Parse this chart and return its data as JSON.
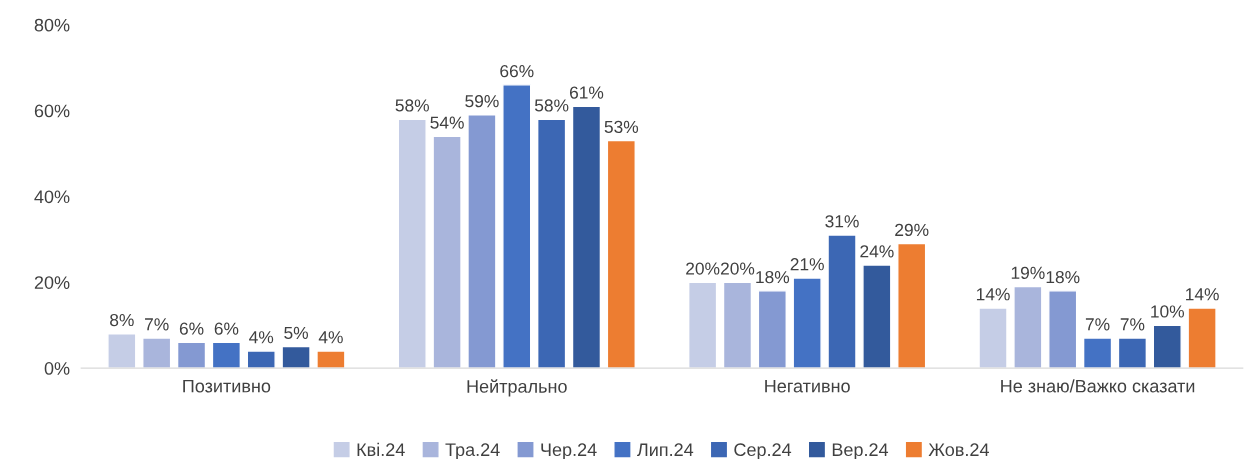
{
  "chart_data": {
    "type": "bar",
    "categories": [
      "Позитивно",
      "Нейтрально",
      "Негативно",
      "Не знаю/Важко сказати"
    ],
    "series": [
      {
        "name": "Кві.24",
        "color": "#c5cde6",
        "values": [
          8,
          58,
          20,
          14
        ],
        "value_labels": [
          "8%",
          "58%",
          "20%",
          "14%"
        ]
      },
      {
        "name": "Тра.24",
        "color": "#a9b5dc",
        "values": [
          7,
          54,
          20,
          19
        ],
        "value_labels": [
          "7%",
          "54%",
          "20%",
          "19%"
        ]
      },
      {
        "name": "Чер.24",
        "color": "#8499d2",
        "values": [
          6,
          59,
          18,
          18
        ],
        "value_labels": [
          "6%",
          "59%",
          "18%",
          "18%"
        ]
      },
      {
        "name": "Лип.24",
        "color": "#4472c4",
        "values": [
          6,
          66,
          21,
          7
        ],
        "value_labels": [
          "6%",
          "66%",
          "21%",
          "7%"
        ]
      },
      {
        "name": "Сер.24",
        "color": "#3c67b4",
        "values": [
          4,
          58,
          31,
          7
        ],
        "value_labels": [
          "4%",
          "58%",
          "31%",
          "7%"
        ]
      },
      {
        "name": "Вер.24",
        "color": "#335a9c",
        "values": [
          5,
          61,
          24,
          10
        ],
        "value_labels": [
          "5%",
          "61%",
          "24%",
          "10%"
        ]
      },
      {
        "name": "Жов.24",
        "color": "#ed7d31",
        "values": [
          4,
          53,
          29,
          14
        ],
        "value_labels": [
          "4%",
          "53%",
          "29%",
          "14%"
        ]
      }
    ],
    "ylim": [
      0,
      80
    ],
    "yticks": [
      {
        "value": 0,
        "label": "0%"
      },
      {
        "value": 20,
        "label": "20%"
      },
      {
        "value": 40,
        "label": "40%"
      },
      {
        "value": 60,
        "label": "60%"
      },
      {
        "value": 80,
        "label": "80%"
      }
    ],
    "grid": false,
    "legend": "bottom"
  }
}
